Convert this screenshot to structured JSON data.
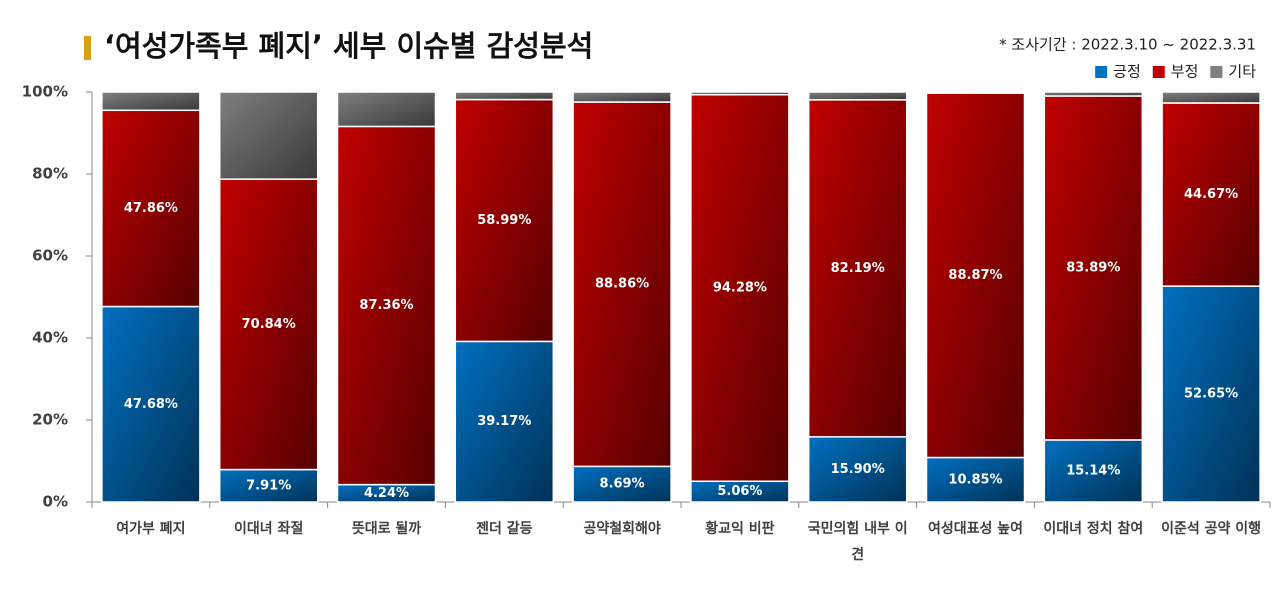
{
  "chart_data": {
    "type": "stacked_bar",
    "title": "‘여성가족부 폐지’ 세부 이슈별 감성분석",
    "subtitle": "* 조사기간 : 2022.3.10 ~ 2022.3.31",
    "categories": [
      "여가부 폐지",
      "이대녀 좌절",
      "뜻대로 될까",
      "젠더 갈등",
      "공약철회해야",
      "황교익 비판",
      "국민의힘 내부 이견",
      "여성대표성 높여",
      "이대녀 정치 참여",
      "이준석 공약 이행"
    ],
    "series": [
      {
        "name": "긍정",
        "color": "#0070c0",
        "values": [
          47.68,
          7.91,
          4.24,
          39.17,
          8.69,
          5.06,
          15.9,
          10.85,
          15.14,
          52.65
        ],
        "value_labels": [
          "47.68%",
          "7.91%",
          "4.24%",
          "39.17%",
          "8.69%",
          "5.06%",
          "15.90%",
          "10.85%",
          "15.14%",
          "52.65%"
        ]
      },
      {
        "name": "부정",
        "color": "#c00000",
        "values": [
          47.86,
          70.84,
          87.36,
          58.99,
          88.86,
          94.28,
          82.19,
          88.87,
          83.89,
          44.67
        ],
        "value_labels": [
          "47.86%",
          "70.84%",
          "87.36%",
          "58.99%",
          "88.86%",
          "94.28%",
          "82.19%",
          "88.87%",
          "83.89%",
          "44.67%"
        ]
      },
      {
        "name": "기타",
        "color": "#7f7f7f",
        "values": [
          4.46,
          21.25,
          8.4,
          1.84,
          2.45,
          0.66,
          1.91,
          0.28,
          0.97,
          2.68
        ]
      }
    ],
    "ylim": [
      0,
      100
    ],
    "yticks": [
      {
        "value": 0,
        "label": "0%"
      },
      {
        "value": 20,
        "label": "20%"
      },
      {
        "value": 40,
        "label": "40%"
      },
      {
        "value": 60,
        "label": "60%"
      },
      {
        "value": 80,
        "label": "80%"
      },
      {
        "value": 100,
        "label": "100%"
      }
    ],
    "legend": "top-right"
  }
}
